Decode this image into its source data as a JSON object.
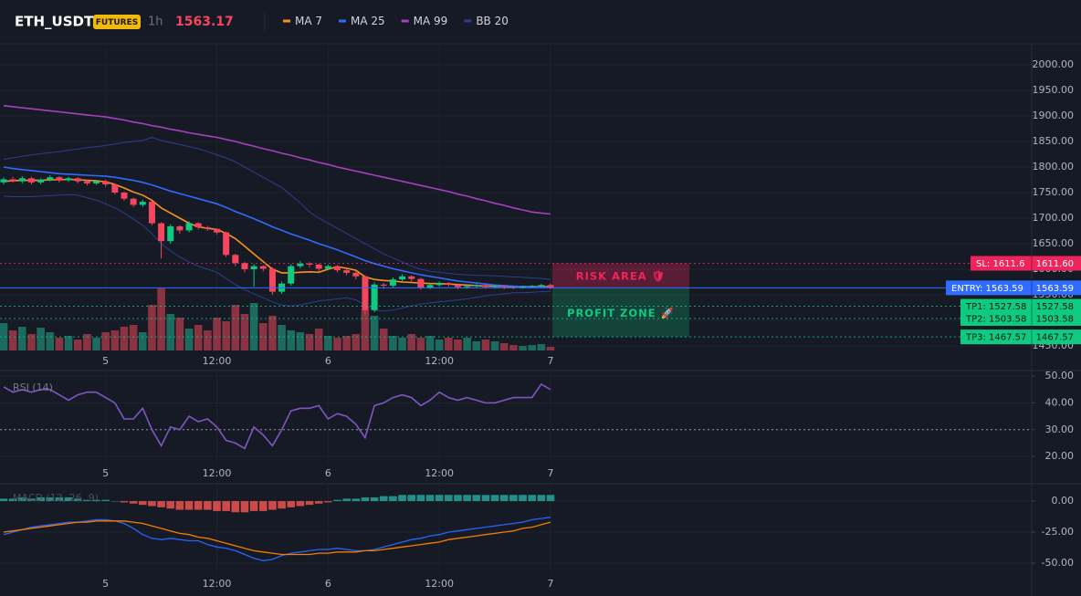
{
  "header": {
    "symbol": "ETH_USDT",
    "badge": "FUTURES",
    "interval": "1h",
    "last_price": 1563.17
  },
  "chart_data": [
    {
      "type": "candlestick",
      "categories": [
        null,
        null,
        null,
        null,
        null,
        null,
        null,
        null,
        null,
        null,
        null,
        "5",
        null,
        null,
        null,
        null,
        null,
        null,
        null,
        null,
        null,
        null,
        null,
        "12:00",
        null,
        null,
        null,
        null,
        null,
        null,
        null,
        null,
        null,
        null,
        null,
        "6",
        null,
        null,
        null,
        null,
        null,
        null,
        null,
        null,
        null,
        null,
        null,
        "12:00",
        null,
        null,
        null,
        null,
        null,
        null,
        null,
        null,
        null,
        null,
        null,
        "7"
      ],
      "open": [
        1770,
        1776,
        1772,
        1778,
        1770,
        1775,
        1780,
        1774,
        1778,
        1772,
        1768,
        1772,
        1766,
        1750,
        1738,
        1726,
        1732,
        1690,
        1655,
        1684,
        1676,
        1690,
        1682,
        1679,
        1672,
        1628,
        1612,
        1600,
        1606,
        1601,
        1556,
        1572,
        1606,
        1611,
        1609,
        1601,
        1606,
        1598,
        1593,
        1586,
        1520,
        1570,
        1568,
        1580,
        1586,
        1581,
        1564,
        1569,
        1573,
        1570,
        1565,
        1567,
        1569,
        1565,
        1567,
        1565,
        1564,
        1566,
        1567,
        1569
      ],
      "high": [
        1780,
        1781,
        1782,
        1781,
        1778,
        1784,
        1782,
        1781,
        1780,
        1775,
        1775,
        1775,
        1768,
        1752,
        1740,
        1736,
        1734,
        1692,
        1688,
        1686,
        1694,
        1692,
        1685,
        1680,
        1674,
        1630,
        1614,
        1610,
        1608,
        1604,
        1576,
        1610,
        1616,
        1614,
        1611,
        1609,
        1608,
        1600,
        1596,
        1588,
        1574,
        1573,
        1584,
        1590,
        1588,
        1583,
        1572,
        1576,
        1575,
        1572,
        1569,
        1571,
        1571,
        1569,
        1569,
        1567,
        1568,
        1569,
        1571,
        1572
      ],
      "low": [
        1766,
        1770,
        1768,
        1766,
        1766,
        1772,
        1770,
        1771,
        1768,
        1764,
        1765,
        1762,
        1746,
        1734,
        1722,
        1722,
        1686,
        1621,
        1650,
        1670,
        1672,
        1678,
        1675,
        1668,
        1624,
        1606,
        1594,
        1566,
        1596,
        1550,
        1552,
        1568,
        1602,
        1604,
        1596,
        1598,
        1594,
        1588,
        1580,
        1512,
        1516,
        1562,
        1564,
        1576,
        1576,
        1560,
        1561,
        1566,
        1566,
        1561,
        1562,
        1563,
        1562,
        1562,
        1561,
        1561,
        1562,
        1563,
        1564,
        1561
      ],
      "close": [
        1776,
        1772,
        1778,
        1770,
        1775,
        1780,
        1774,
        1778,
        1772,
        1768,
        1772,
        1766,
        1750,
        1738,
        1726,
        1732,
        1690,
        1655,
        1684,
        1676,
        1690,
        1682,
        1679,
        1672,
        1628,
        1612,
        1600,
        1606,
        1601,
        1556,
        1572,
        1606,
        1611,
        1609,
        1601,
        1606,
        1598,
        1593,
        1586,
        1520,
        1570,
        1568,
        1580,
        1586,
        1581,
        1564,
        1569,
        1573,
        1570,
        1565,
        1567,
        1569,
        1565,
        1567,
        1565,
        1564,
        1566,
        1567,
        1569,
        1564
      ],
      "volume": [
        30,
        22,
        26,
        18,
        25,
        20,
        14,
        16,
        12,
        18,
        14,
        20,
        22,
        26,
        28,
        20,
        50,
        68,
        40,
        36,
        24,
        28,
        22,
        36,
        32,
        50,
        40,
        52,
        30,
        38,
        28,
        22,
        20,
        18,
        24,
        16,
        14,
        16,
        18,
        45,
        38,
        24,
        16,
        14,
        18,
        14,
        16,
        12,
        14,
        12,
        14,
        10,
        12,
        10,
        8,
        6,
        5,
        6,
        7,
        4
      ],
      "volume_ylim": [
        0,
        100
      ],
      "up_color": "#0ecb81",
      "down_color": "#f6465d",
      "up_volume_color": "#1d6b5f",
      "down_volume_color": "#8a3342",
      "series": [
        {
          "name": "MA 7",
          "color": "#f7931a",
          "values": [
            1772,
            1773,
            1774,
            1774,
            1774,
            1775,
            1775,
            1776,
            1775,
            1774,
            1773,
            1771,
            1766,
            1759,
            1751,
            1745,
            1735,
            1720,
            1710,
            1700,
            1690,
            1683,
            1680,
            1678,
            1670,
            1660,
            1645,
            1630,
            1615,
            1600,
            1593,
            1593,
            1594,
            1595,
            1594,
            1600,
            1605,
            1602,
            1598,
            1585,
            1580,
            1578,
            1577,
            1575,
            1574,
            1573,
            1572,
            1572,
            1571,
            1570,
            1569,
            1568,
            1567,
            1567,
            1566,
            1566,
            1566,
            1566,
            1566,
            1566
          ]
        },
        {
          "name": "MA 25",
          "color": "#2f6bff",
          "values": [
            1800,
            1797,
            1795,
            1793,
            1791,
            1789,
            1787,
            1786,
            1785,
            1784,
            1783,
            1782,
            1780,
            1777,
            1774,
            1770,
            1765,
            1759,
            1753,
            1748,
            1743,
            1738,
            1733,
            1728,
            1721,
            1713,
            1706,
            1699,
            1691,
            1683,
            1676,
            1669,
            1663,
            1657,
            1650,
            1644,
            1638,
            1631,
            1624,
            1617,
            1611,
            1606,
            1601,
            1597,
            1593,
            1589,
            1586,
            1583,
            1580,
            1577,
            1575,
            1573,
            1571,
            1569,
            1568,
            1567,
            1566,
            1565,
            1565,
            1564
          ]
        },
        {
          "name": "MA 99",
          "color": "#a83fc2",
          "values": [
            1920,
            1918,
            1916,
            1914,
            1912,
            1910,
            1908,
            1906,
            1904,
            1902,
            1900,
            1898,
            1895,
            1892,
            1888,
            1885,
            1881,
            1878,
            1874,
            1871,
            1867,
            1864,
            1861,
            1858,
            1854,
            1850,
            1845,
            1841,
            1836,
            1832,
            1827,
            1823,
            1818,
            1814,
            1809,
            1805,
            1800,
            1796,
            1792,
            1788,
            1784,
            1780,
            1776,
            1772,
            1768,
            1764,
            1760,
            1756,
            1752,
            1747,
            1743,
            1738,
            1734,
            1729,
            1725,
            1720,
            1716,
            1712,
            1710,
            1708
          ]
        },
        {
          "name": "BB 20",
          "color": "#2b3f8f",
          "upper": [
            1815,
            1818,
            1821,
            1824,
            1826,
            1828,
            1830,
            1833,
            1835,
            1838,
            1840,
            1842,
            1845,
            1848,
            1850,
            1852,
            1858,
            1852,
            1848,
            1844,
            1840,
            1836,
            1830,
            1824,
            1818,
            1810,
            1800,
            1790,
            1780,
            1770,
            1760,
            1745,
            1730,
            1712,
            1700,
            1690,
            1680,
            1670,
            1660,
            1650,
            1640,
            1630,
            1622,
            1614,
            1606,
            1600,
            1596,
            1594,
            1592,
            1590,
            1589,
            1588,
            1588,
            1587,
            1586,
            1585,
            1584,
            1583,
            1582,
            1580
          ],
          "lower": [
            1743,
            1742,
            1742,
            1742,
            1743,
            1744,
            1745,
            1746,
            1745,
            1740,
            1735,
            1728,
            1720,
            1710,
            1698,
            1686,
            1670,
            1650,
            1636,
            1624,
            1614,
            1606,
            1600,
            1594,
            1582,
            1570,
            1560,
            1552,
            1544,
            1536,
            1530,
            1528,
            1530,
            1534,
            1538,
            1540,
            1542,
            1544,
            1540,
            1530,
            1520,
            1518,
            1520,
            1524,
            1528,
            1532,
            1534,
            1536,
            1538,
            1540,
            1542,
            1545,
            1548,
            1550,
            1552,
            1554,
            1554,
            1555,
            1556,
            1557
          ]
        }
      ],
      "ylim": [
        1441,
        2034
      ],
      "yticks": [
        {
          "value": 2000,
          "label": "2000.00"
        },
        {
          "value": 1950,
          "label": "1950.00"
        },
        {
          "value": 1900,
          "label": "1900.00"
        },
        {
          "value": 1850,
          "label": "1850.00"
        },
        {
          "value": 1800,
          "label": "1800.00"
        },
        {
          "value": 1750,
          "label": "1750.00"
        },
        {
          "value": 1700,
          "label": "1700.00"
        },
        {
          "value": 1650,
          "label": "1650.00"
        },
        {
          "value": 1600,
          "label": "1600.00"
        },
        {
          "value": 1550,
          "label": "1550.00"
        },
        {
          "value": 1500,
          "label": "1500.00"
        },
        {
          "value": 1450,
          "label": "1450.00"
        }
      ],
      "levels": [
        {
          "name": "SL: 1611.6",
          "value": 1611.6,
          "label": "1611.60",
          "color": "#f0245a"
        },
        {
          "name": "ENTRY: 1563.59",
          "value": 1563.59,
          "label": "1563.59",
          "color": "#2f6bff"
        },
        {
          "name": "TP1: 1527.58",
          "value": 1527.58,
          "label": "1527.58",
          "color": "#0ecb81"
        },
        {
          "name": "TP2: 1503.58",
          "value": 1503.58,
          "label": "1503.58",
          "color": "#0ecb81"
        },
        {
          "name": "TP3: 1467.57",
          "value": 1467.57,
          "label": "1467.57",
          "color": "#0ecb81"
        }
      ],
      "risk_label": "RISK AREA 🛡",
      "profit_label": "PROFIT ZONE 🚀"
    },
    {
      "type": "line",
      "title": "RSI (14)",
      "color": "#7e57c2",
      "values": [
        46,
        44,
        45,
        44,
        45,
        45,
        43,
        41,
        43,
        44,
        44,
        42,
        40,
        34,
        34,
        38,
        30,
        24,
        31,
        30,
        35,
        33,
        34,
        31,
        26,
        25,
        23,
        31,
        28,
        24,
        30,
        37,
        38,
        38,
        39,
        34,
        36,
        35,
        32,
        27,
        39,
        40,
        42,
        43,
        42,
        39,
        41,
        44,
        42,
        41,
        42,
        41,
        40,
        40,
        41,
        42,
        42,
        42,
        47,
        45
      ],
      "ylim": [
        17.3,
        51.4
      ],
      "yticks": [
        {
          "value": 50,
          "label": "50.00"
        },
        {
          "value": 40,
          "label": "40.00"
        },
        {
          "value": 30,
          "label": "30.00"
        },
        {
          "value": 20,
          "label": "20.00"
        }
      ],
      "guides": [
        30
      ]
    },
    {
      "type": "macd",
      "title": "MACD (12, 26, 9)",
      "histogram": [
        2,
        2,
        3,
        2,
        3,
        3,
        3,
        3,
        2,
        1,
        1,
        1,
        0,
        -1,
        -2,
        -3,
        -4,
        -5,
        -6,
        -7,
        -7,
        -7,
        -7,
        -8,
        -8,
        -9,
        -9,
        -8,
        -8,
        -7,
        -6,
        -5,
        -4,
        -3,
        -2,
        -1,
        1,
        2,
        2,
        3,
        3,
        4,
        4,
        5,
        5,
        5,
        5,
        5,
        5,
        5,
        5,
        5,
        5,
        5,
        5,
        5,
        5,
        5,
        5,
        5
      ],
      "macd": [
        -27,
        -25,
        -23,
        -21,
        -20,
        -19,
        -18,
        -17,
        -17,
        -16,
        -15,
        -15,
        -16,
        -18,
        -22,
        -27,
        -30,
        -31,
        -30,
        -31,
        -32,
        -32,
        -35,
        -37,
        -38,
        -40,
        -43,
        -46,
        -48,
        -47,
        -44,
        -42,
        -41,
        -40,
        -39,
        -39,
        -38,
        -39,
        -40,
        -40,
        -39,
        -37,
        -35,
        -33,
        -31,
        -30,
        -28,
        -27,
        -25,
        -24,
        -23,
        -22,
        -21,
        -20,
        -19,
        -18,
        -17,
        -15,
        -14,
        -13
      ],
      "signal": [
        -25,
        -24,
        -23,
        -22,
        -21,
        -20,
        -19,
        -18,
        -17,
        -17,
        -16,
        -16,
        -16,
        -16,
        -17,
        -18,
        -20,
        -22,
        -24,
        -26,
        -27,
        -29,
        -30,
        -32,
        -34,
        -36,
        -38,
        -40,
        -41,
        -42,
        -43,
        -43,
        -43,
        -43,
        -42,
        -42,
        -41,
        -41,
        -41,
        -40,
        -40,
        -39,
        -38,
        -37,
        -36,
        -35,
        -34,
        -33,
        -31,
        -30,
        -29,
        -28,
        -27,
        -26,
        -25,
        -24,
        -22,
        -21,
        -19,
        -17
      ],
      "macd_color": "#2962ff",
      "signal_color": "#f57c00",
      "positive_color": "#26a69a",
      "negative_color": "#ef5350",
      "ylim": [
        -58.1,
        11.8
      ],
      "yticks": [
        {
          "value": 0,
          "label": "0.00"
        },
        {
          "value": -25,
          "label": "-25.00"
        },
        {
          "value": -50,
          "label": "-50.00"
        }
      ]
    }
  ]
}
